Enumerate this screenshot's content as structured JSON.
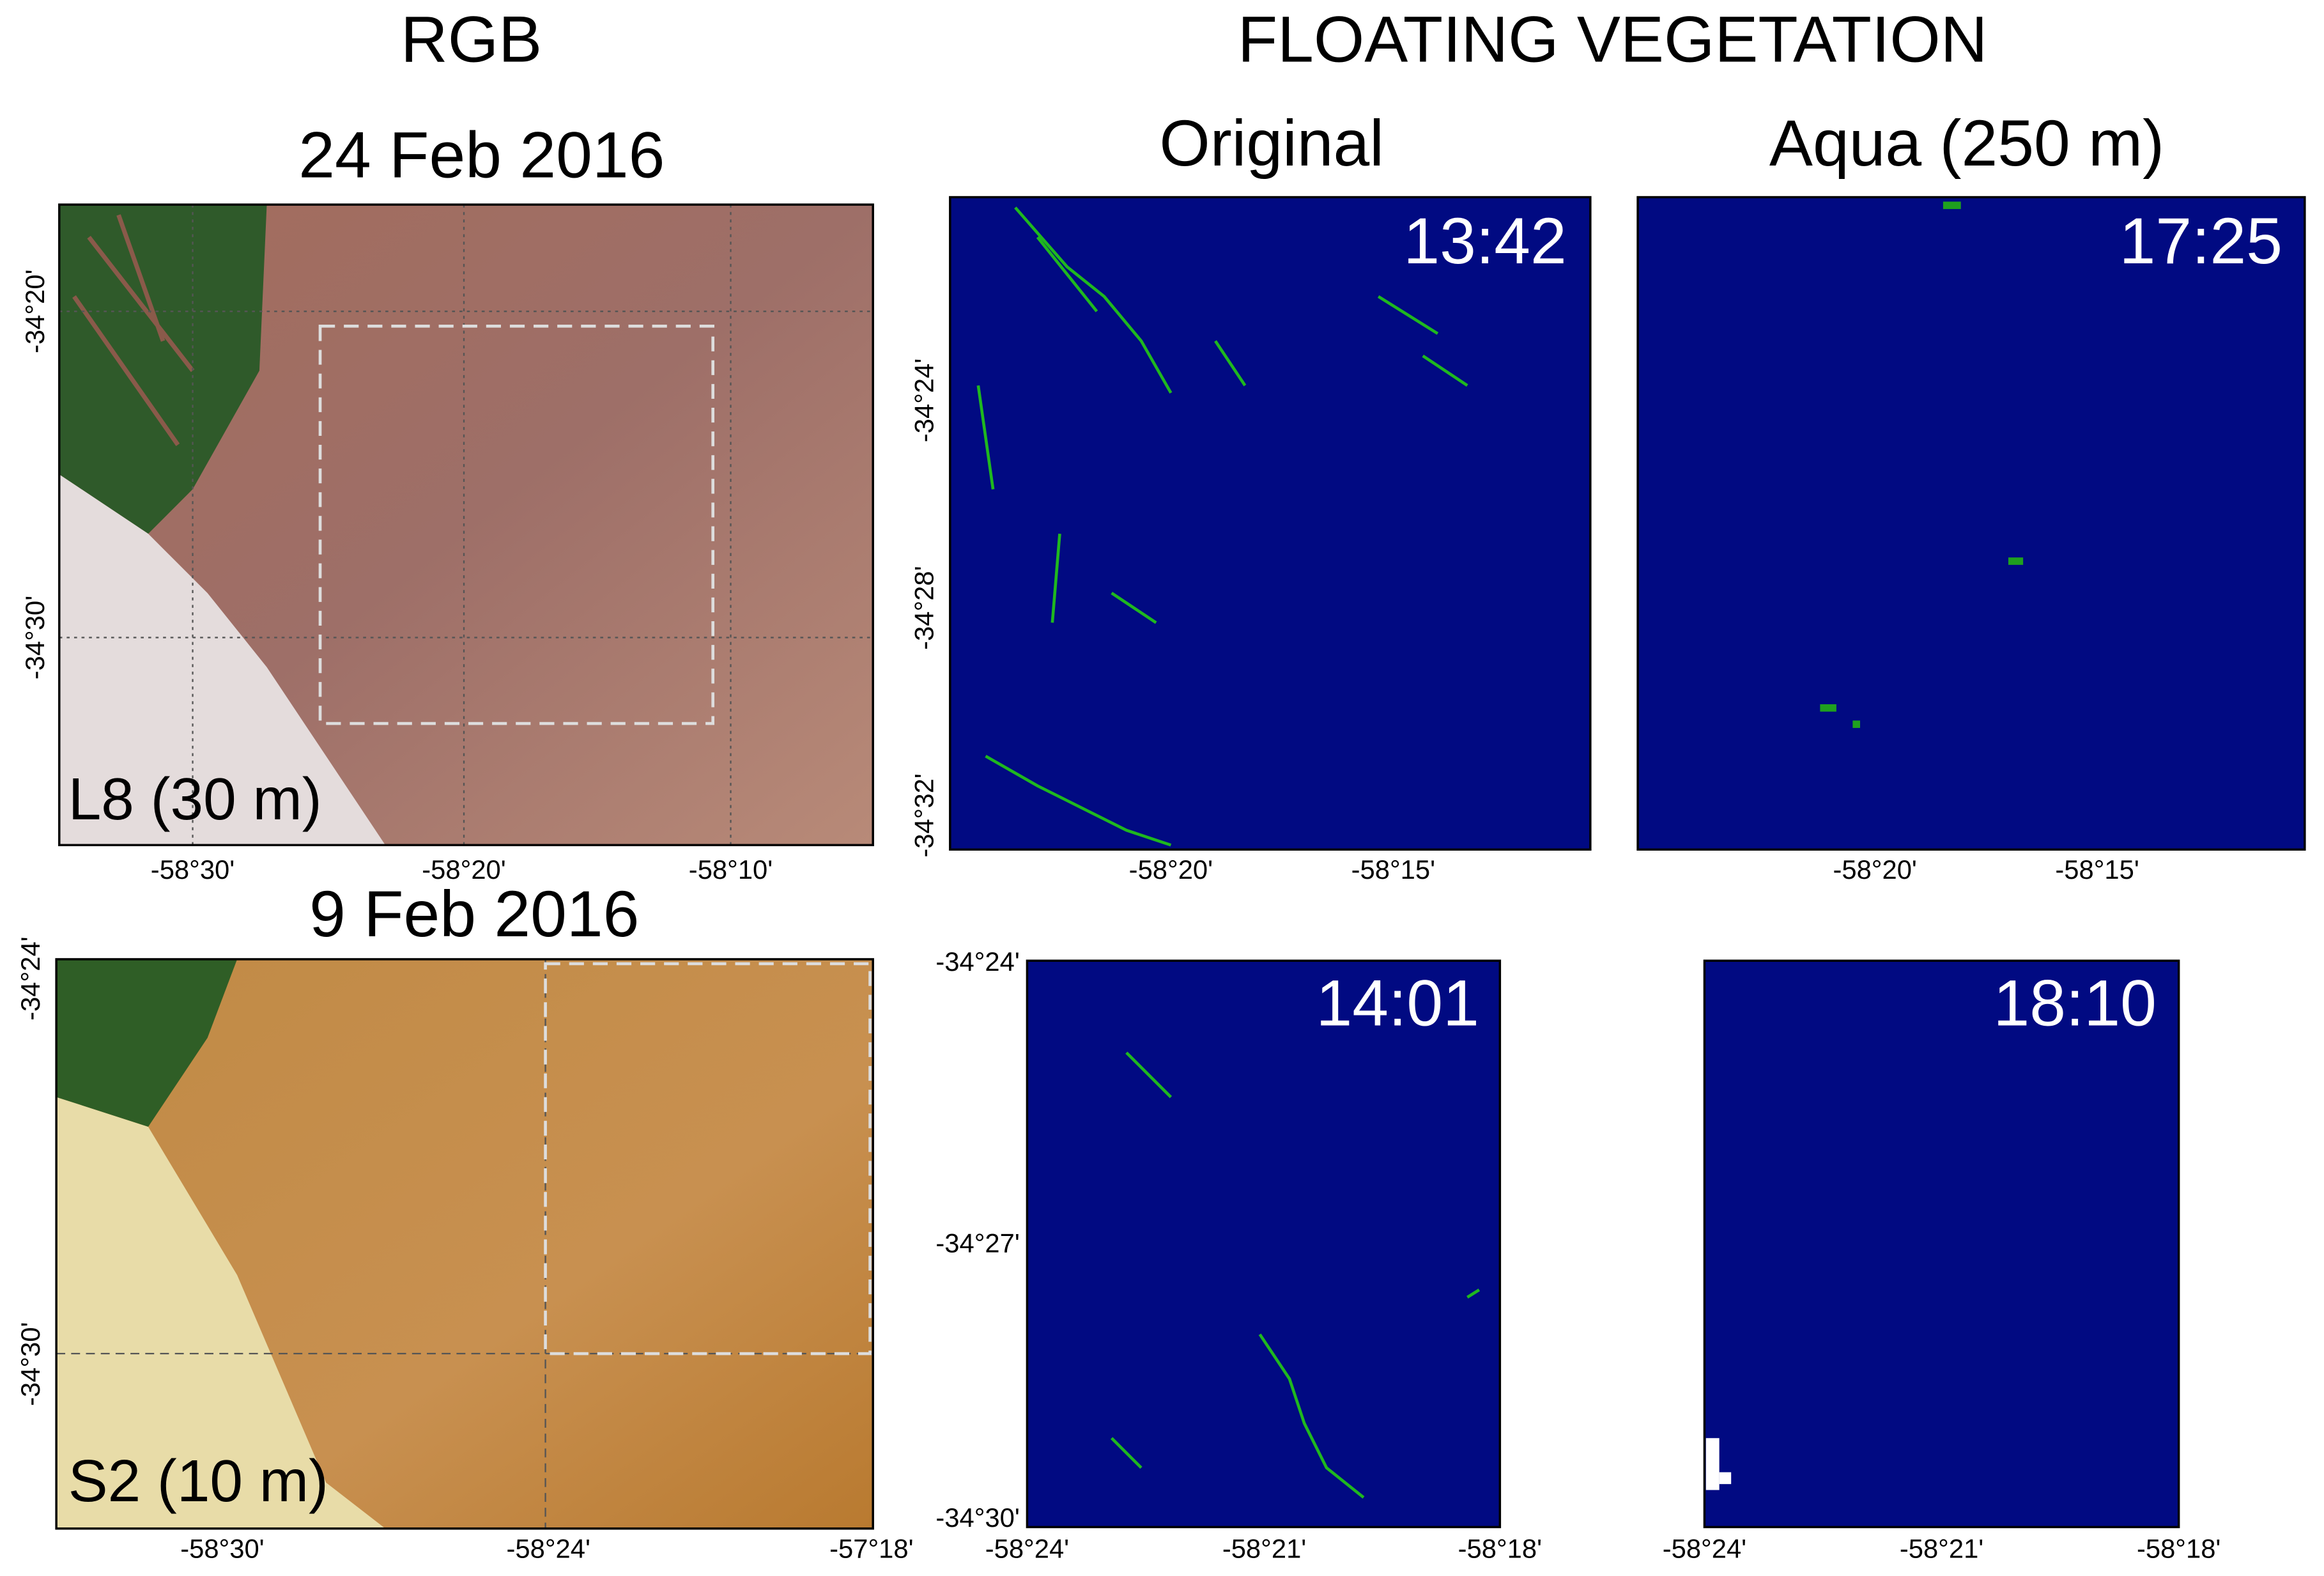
{
  "column_titles": [
    "RGB",
    "FLOATING VEGETATION"
  ],
  "subtitles": [
    "Original",
    "Aqua (250 m)"
  ],
  "rows": [
    {
      "date": "24 Feb 2016",
      "sensor": "L8 (30 m)",
      "rgb_xticks": [
        "-58°30'",
        "-58°20'",
        "-58°10'"
      ],
      "rgb_yticks": [
        "-34°20'",
        "-34°30'"
      ],
      "original_time": "13:42",
      "aqua_time": "17:25",
      "original_yticks": [
        "-34°24'",
        "-34°28'",
        "-34°32'"
      ],
      "original_xticks": [
        "-58°20'",
        "-58°15'"
      ],
      "aqua_xticks": [
        "-58°20'",
        "-58°15'"
      ]
    },
    {
      "date": "9 Feb 2016",
      "sensor": "S2 (10 m)",
      "rgb_xticks": [
        "-58°30'",
        "-58°24'",
        "-57°18'"
      ],
      "rgb_yticks": [
        "-34°24'",
        "-34°30'"
      ],
      "original_time": "14:01",
      "aqua_time": "18:10",
      "original_yticks": [
        "-34°24'",
        "-34°27'",
        "-34°30'"
      ],
      "original_xticks": [
        "-58°24'",
        "-58°21'",
        "-58°18'"
      ],
      "aqua_xticks": [
        "-58°24'",
        "-58°21'",
        "-58°18'"
      ]
    }
  ]
}
